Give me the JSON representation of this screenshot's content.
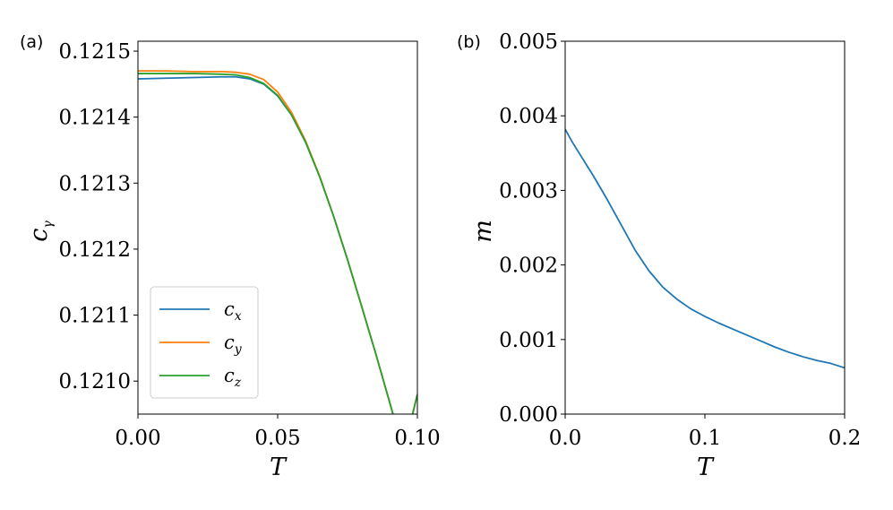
{
  "chart_data": [
    {
      "type": "line",
      "panel_label": "(a)",
      "xlabel": "T",
      "ylabel": "c",
      "ylabel_sub": "γ",
      "xlim": [
        0.0,
        0.1
      ],
      "ylim": [
        0.12095,
        0.121515
      ],
      "x_ticks": [
        0.0,
        0.05,
        0.1
      ],
      "x_tick_labels": [
        "0.00",
        "0.05",
        "0.10"
      ],
      "y_ticks": [
        0.121,
        0.1211,
        0.1212,
        0.1213,
        0.1214,
        0.1215
      ],
      "y_tick_labels": [
        "0.1210",
        "0.1211",
        "0.1212",
        "0.1213",
        "0.1214",
        "0.1215"
      ],
      "legend_position": "lower-left",
      "series": [
        {
          "name": "c",
          "name_sub": "x",
          "color": "#1f77b4",
          "x": [
            0.0,
            0.01,
            0.02,
            0.03,
            0.035,
            0.04,
            0.045,
            0.05,
            0.055,
            0.06,
            0.065,
            0.07,
            0.075,
            0.08,
            0.085,
            0.09,
            0.095,
            0.1
          ],
          "y": [
            0.121458,
            0.121459,
            0.12146,
            0.121461,
            0.121461,
            0.121458,
            0.12145,
            0.121432,
            0.121403,
            0.121362,
            0.12131,
            0.12125,
            0.121184,
            0.121114,
            0.121043,
            0.120969,
            0.120893,
            0.12098
          ]
        },
        {
          "name": "c",
          "name_sub": "y",
          "color": "#ff7f0e",
          "x": [
            0.0,
            0.01,
            0.02,
            0.03,
            0.035,
            0.04,
            0.045,
            0.05,
            0.055,
            0.06,
            0.065,
            0.07,
            0.075,
            0.08,
            0.085,
            0.09,
            0.095,
            0.1
          ],
          "y": [
            0.12147,
            0.12147,
            0.121469,
            0.121469,
            0.121468,
            0.121465,
            0.121457,
            0.121438,
            0.121407,
            0.121364,
            0.121311,
            0.12125,
            0.121184,
            0.121114,
            0.121043,
            0.120969,
            0.120893,
            0.12098
          ]
        },
        {
          "name": "c",
          "name_sub": "z",
          "color": "#2ca02c",
          "x": [
            0.0,
            0.01,
            0.02,
            0.03,
            0.035,
            0.04,
            0.045,
            0.05,
            0.055,
            0.06,
            0.065,
            0.07,
            0.075,
            0.08,
            0.085,
            0.09,
            0.095,
            0.1
          ],
          "y": [
            0.121466,
            0.121466,
            0.121466,
            0.121465,
            0.121464,
            0.12146,
            0.121451,
            0.121433,
            0.121403,
            0.121362,
            0.12131,
            0.12125,
            0.121184,
            0.121114,
            0.121043,
            0.120969,
            0.120893,
            0.12098
          ]
        }
      ]
    },
    {
      "type": "line",
      "panel_label": "(b)",
      "xlabel": "T",
      "ylabel": "m",
      "xlim": [
        0.0,
        0.2
      ],
      "ylim": [
        0.0,
        0.005
      ],
      "x_ticks": [
        0.0,
        0.1,
        0.2
      ],
      "x_tick_labels": [
        "0.0",
        "0.1",
        "0.2"
      ],
      "y_ticks": [
        0.0,
        0.001,
        0.002,
        0.003,
        0.004,
        0.005
      ],
      "y_tick_labels": [
        "0.000",
        "0.001",
        "0.002",
        "0.003",
        "0.004",
        "0.005"
      ],
      "series": [
        {
          "color": "#1f77b4",
          "x": [
            0.0,
            0.005,
            0.01,
            0.02,
            0.03,
            0.04,
            0.05,
            0.06,
            0.07,
            0.08,
            0.09,
            0.1,
            0.11,
            0.12,
            0.13,
            0.14,
            0.15,
            0.16,
            0.17,
            0.18,
            0.19,
            0.2
          ],
          "y": [
            0.00382,
            0.00365,
            0.0035,
            0.0032,
            0.00288,
            0.00254,
            0.0022,
            0.00192,
            0.0017,
            0.00154,
            0.00141,
            0.00131,
            0.00122,
            0.00114,
            0.00106,
            0.00098,
            0.0009,
            0.00083,
            0.00077,
            0.00072,
            0.00068,
            0.00062
          ]
        }
      ]
    }
  ]
}
